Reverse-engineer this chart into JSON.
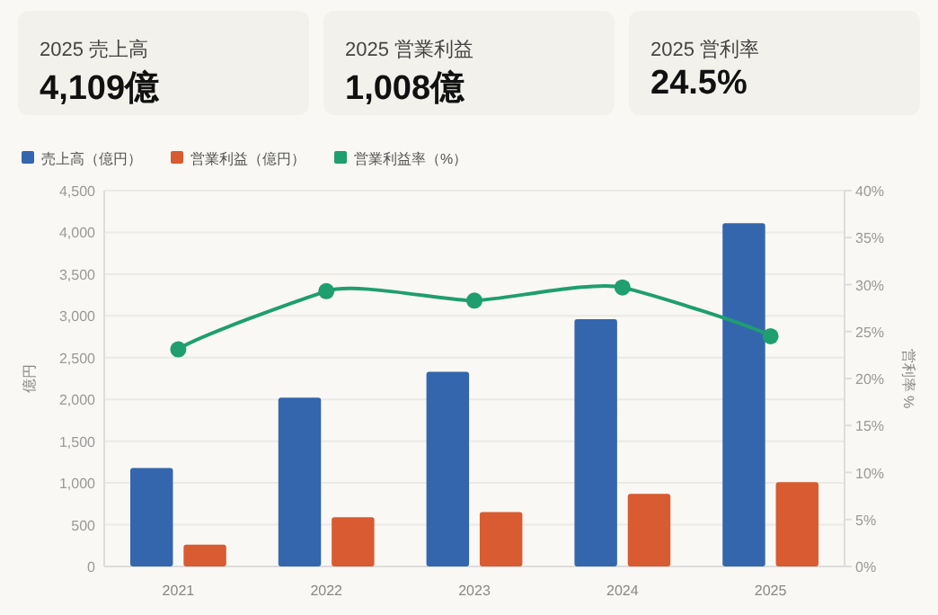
{
  "chart_data": [
    {
      "type": "other",
      "title": "2025 売上高",
      "annotations": [
        "4,109億"
      ]
    },
    {
      "type": "other",
      "title": "2025 営業利益",
      "annotations": [
        "1,008億"
      ]
    },
    {
      "type": "other",
      "title": "2025 営利率",
      "annotations": [
        "24.5%"
      ]
    },
    {
      "type": "bar",
      "categories": [
        "2021",
        "2022",
        "2023",
        "2024",
        "2025"
      ],
      "series": [
        {
          "name": "売上高（億円）",
          "color": "#3466ae",
          "values": [
            1180,
            2020,
            2330,
            2960,
            4109
          ]
        },
        {
          "name": "営業利益（億円）",
          "color": "#d95b31",
          "values": [
            260,
            590,
            650,
            870,
            1008
          ]
        },
        {
          "name": "営業利益率（%）",
          "type": "line",
          "axis": "y2",
          "color": "#1f9e70",
          "values": [
            23.1,
            29.3,
            28.3,
            29.7,
            24.5
          ]
        }
      ],
      "ylabel": "億円",
      "y2label": "営利率 %",
      "ylim": [
        0,
        4500
      ],
      "yticks": [
        0,
        500,
        {
          "value": 1000,
          "label": "1,000"
        },
        {
          "value": 1500,
          "label": "1,500"
        },
        {
          "value": 2000,
          "label": "2,000"
        },
        {
          "value": 2500,
          "label": "2,500"
        },
        {
          "value": 3000,
          "label": "3,000"
        },
        {
          "value": 3500,
          "label": "3,500"
        },
        {
          "value": 4000,
          "label": "4,000"
        },
        {
          "value": 4500,
          "label": "4,500"
        }
      ],
      "y2lim": [
        0,
        40
      ],
      "y2ticks": [
        {
          "value": 0,
          "label": "0%"
        },
        {
          "value": 5,
          "label": "5%"
        },
        {
          "value": 10,
          "label": "10%"
        },
        {
          "value": 15,
          "label": "15%"
        },
        {
          "value": 20,
          "label": "20%"
        },
        {
          "value": 25,
          "label": "25%"
        },
        {
          "value": 30,
          "label": "30%"
        },
        {
          "value": 35,
          "label": "35%"
        },
        {
          "value": 40,
          "label": "40%"
        }
      ],
      "grid": "y",
      "legend": "top left",
      "marker": "circle"
    }
  ]
}
